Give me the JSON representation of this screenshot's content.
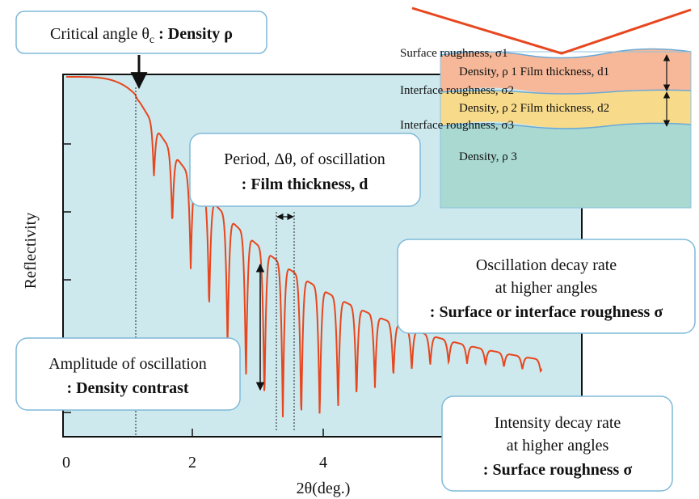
{
  "critical": {
    "main": "Critical angle θ",
    "sub": "c",
    "bold": " : Density ρ"
  },
  "period": {
    "line1": "Period, Δθ, of oscillation",
    "line2": ": Film thickness, d"
  },
  "oscillation": {
    "line1": "Oscillation decay rate",
    "line2": "at higher angles",
    "line3": ": Surface or interface roughness σ"
  },
  "amplitude": {
    "line1": "Amplitude of oscillation",
    "line2": ": Density contrast"
  },
  "intensity": {
    "line1": "Intensity decay rate",
    "line2": "at higher angles",
    "line3": ": Surface roughness σ"
  },
  "layers": {
    "surface": "Surface roughness, σ1",
    "layer1": "Density, ρ 1  Film thickness, d1",
    "interface2": "Interface roughness, σ2",
    "layer2": "Density, ρ 2  Film thickness, d2",
    "interface3": "Interface roughness, σ3",
    "substrate": "Density, ρ 3"
  },
  "axes": {
    "y_label": "Reflectivity",
    "x_label": "2θ(deg.)",
    "x_ticks": [
      "0",
      "2",
      "4"
    ]
  }
}
